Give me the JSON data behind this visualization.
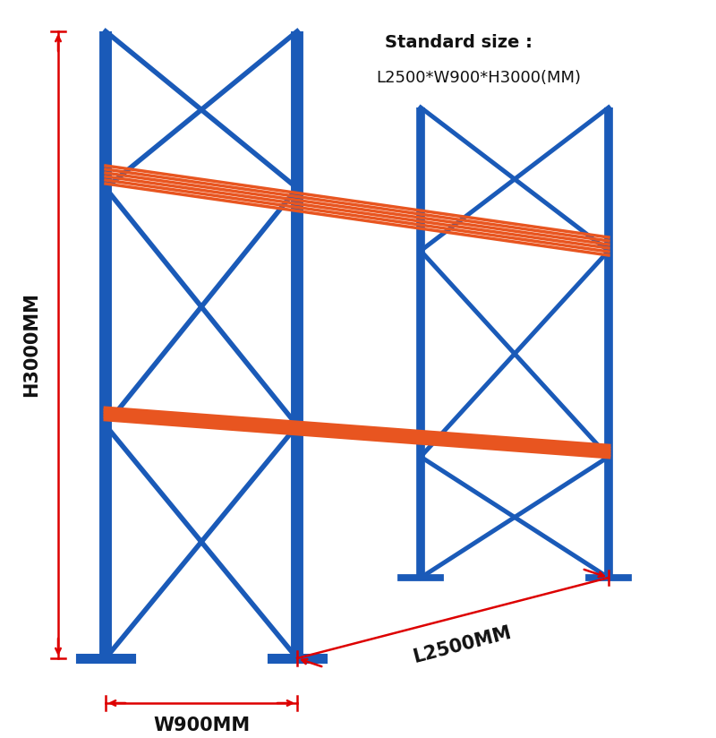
{
  "bg_color": "#ffffff",
  "blue": "#1a5ab8",
  "orange": "#e85520",
  "red_dim": "#dd0000",
  "black": "#111111",
  "title_line1": "Standard size :",
  "title_line2": "L2500*W900*H3000(MM)",
  "dim_H": "H3000MM",
  "dim_W": "W900MM",
  "dim_L": "L2500MM",
  "fig_width": 8.0,
  "fig_height": 8.24
}
